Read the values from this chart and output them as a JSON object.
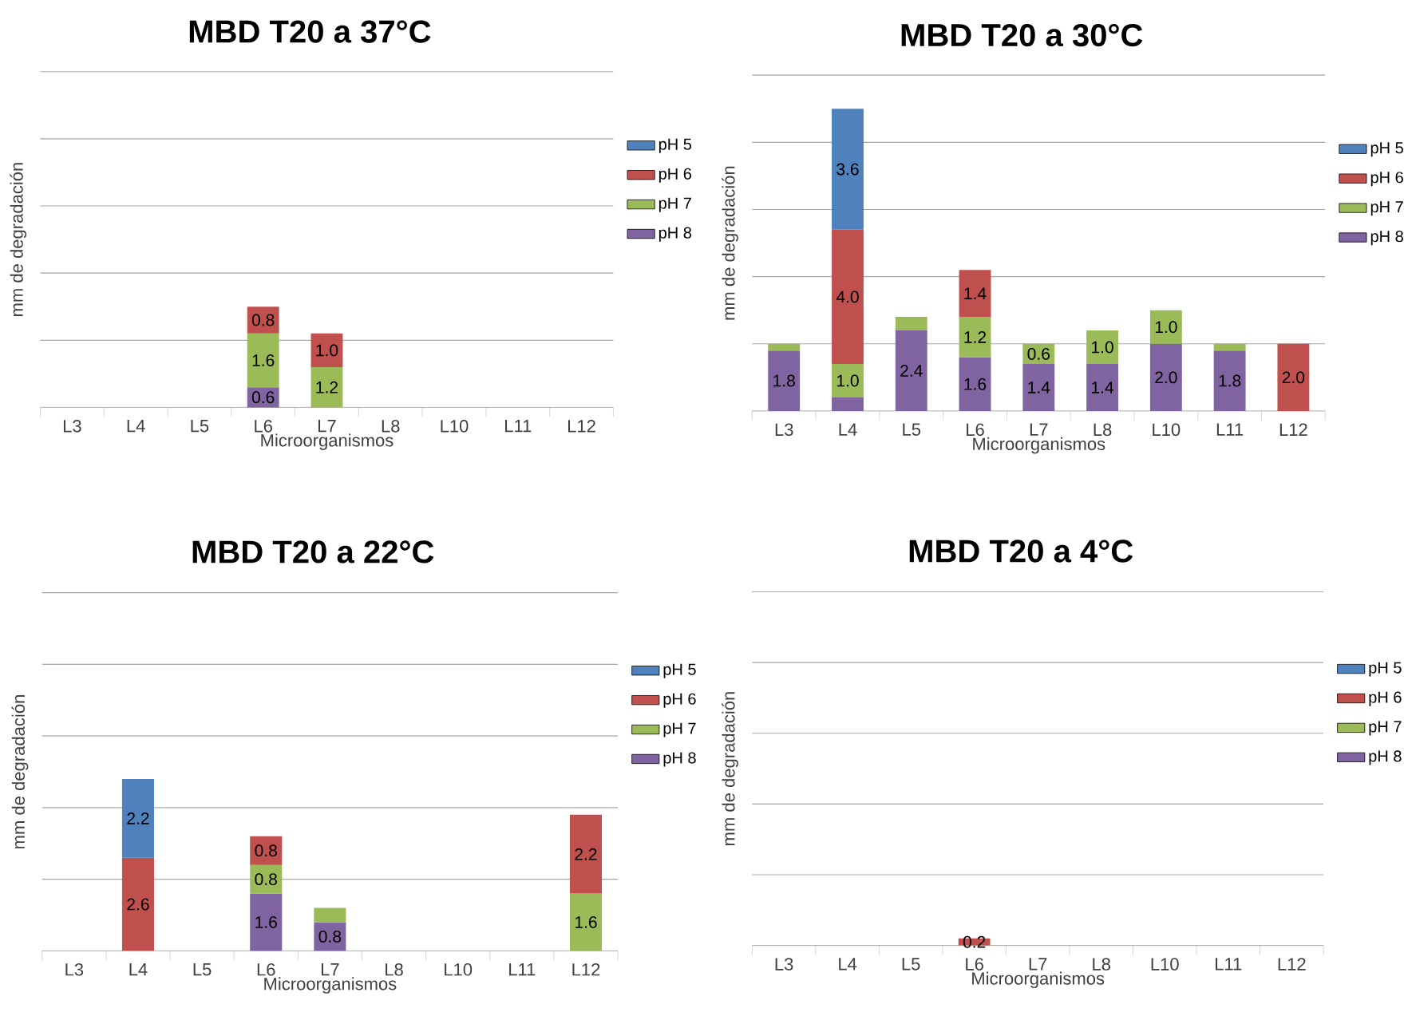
{
  "chart_data": [
    {
      "type": "bar",
      "stacked": true,
      "title": "MBD T20 a 37°C",
      "xlabel": "Microorganismos",
      "ylabel": "mm de degradación",
      "categories": [
        "L3",
        "L4",
        "L5",
        "L6",
        "L7",
        "L8",
        "L10",
        "L11",
        "L12"
      ],
      "ylim": [
        0,
        10
      ],
      "yticks": [
        {
          "value": 2,
          "label": null
        },
        {
          "value": 4,
          "label": null
        },
        {
          "value": 6,
          "label": null
        },
        {
          "value": 8,
          "label": null
        },
        {
          "value": 10,
          "label": null
        }
      ],
      "tick_labels": "x",
      "grid": "y",
      "legend": "right",
      "series": [
        {
          "name": "pH 8",
          "color": "#8064a2",
          "values": [
            null,
            null,
            null,
            0.6,
            null,
            null,
            null,
            null,
            null
          ],
          "value_labels": [
            null,
            null,
            null,
            "0.6",
            null,
            null,
            null,
            null,
            null
          ]
        },
        {
          "name": "pH 7",
          "color": "#9bbb59",
          "values": [
            null,
            null,
            null,
            1.6,
            1.2,
            null,
            null,
            null,
            null
          ],
          "value_labels": [
            null,
            null,
            null,
            "1.6",
            "1.2",
            null,
            null,
            null,
            null
          ]
        },
        {
          "name": "pH 6",
          "color": "#c0504d",
          "values": [
            null,
            null,
            null,
            0.8,
            1.0,
            null,
            null,
            null,
            null
          ],
          "value_labels": [
            null,
            null,
            null,
            "0.8",
            "1.0",
            null,
            null,
            null,
            null
          ]
        },
        {
          "name": "pH 5",
          "color": "#4f81bd",
          "values": [
            null,
            null,
            null,
            null,
            null,
            null,
            null,
            null,
            null
          ]
        }
      ]
    },
    {
      "type": "bar",
      "stacked": true,
      "title": "MBD T20 a 30°C",
      "xlabel": "Microorganismos",
      "ylabel": "mm de degradación",
      "categories": [
        "L3",
        "L4",
        "L5",
        "L6",
        "L7",
        "L8",
        "L10",
        "L11",
        "L12"
      ],
      "ylim": [
        0,
        10
      ],
      "yticks": [
        {
          "value": 2,
          "label": null
        },
        {
          "value": 4,
          "label": null
        },
        {
          "value": 6,
          "label": null
        },
        {
          "value": 8,
          "label": null
        },
        {
          "value": 10,
          "label": null
        }
      ],
      "tick_labels": "x",
      "grid": "y",
      "legend": "right",
      "series": [
        {
          "name": "pH 8",
          "color": "#8064a2",
          "values": [
            1.8,
            0.4,
            2.4,
            1.6,
            1.4,
            1.4,
            2.0,
            1.8,
            null
          ],
          "value_labels": [
            "1.8",
            null,
            "2.4",
            "1.6",
            "1.4",
            "1.4",
            "2.0",
            "1.8",
            null
          ]
        },
        {
          "name": "pH 7",
          "color": "#9bbb59",
          "values": [
            0.2,
            1.0,
            0.4,
            1.2,
            0.6,
            1.0,
            1.0,
            0.2,
            null
          ],
          "value_labels": [
            null,
            "1.0",
            null,
            "1.2",
            "0.6",
            "1.0",
            "1.0",
            null,
            null
          ]
        },
        {
          "name": "pH 6",
          "color": "#c0504d",
          "values": [
            null,
            4.0,
            null,
            1.4,
            null,
            null,
            null,
            null,
            2.0
          ],
          "value_labels": [
            null,
            "4.0",
            null,
            "1.4",
            null,
            null,
            null,
            null,
            "2.0"
          ]
        },
        {
          "name": "pH 5",
          "color": "#4f81bd",
          "values": [
            null,
            3.6,
            null,
            null,
            null,
            null,
            null,
            null,
            null
          ],
          "value_labels": [
            null,
            "3.6",
            null,
            null,
            null,
            null,
            null,
            null,
            null
          ]
        }
      ]
    },
    {
      "type": "bar",
      "stacked": true,
      "title": "MBD T20 a 22°C",
      "xlabel": "Microorganismos",
      "ylabel": "mm de degradación",
      "categories": [
        "L3",
        "L4",
        "L5",
        "L6",
        "L7",
        "L8",
        "L10",
        "L11",
        "L12"
      ],
      "ylim": [
        0,
        10
      ],
      "yticks": [
        {
          "value": 2,
          "label": null
        },
        {
          "value": 4,
          "label": null
        },
        {
          "value": 6,
          "label": null
        },
        {
          "value": 8,
          "label": null
        },
        {
          "value": 10,
          "label": null
        }
      ],
      "tick_labels": "x",
      "grid": "y",
      "legend": "right",
      "series": [
        {
          "name": "pH 8",
          "color": "#8064a2",
          "values": [
            null,
            null,
            null,
            1.6,
            0.8,
            null,
            null,
            null,
            null
          ],
          "value_labels": [
            null,
            null,
            null,
            "1.6",
            "0.8",
            null,
            null,
            null,
            null
          ]
        },
        {
          "name": "pH 7",
          "color": "#9bbb59",
          "values": [
            null,
            null,
            null,
            0.8,
            0.4,
            null,
            null,
            null,
            1.6
          ],
          "value_labels": [
            null,
            null,
            null,
            "0.8",
            null,
            null,
            null,
            null,
            "1.6"
          ]
        },
        {
          "name": "pH 6",
          "color": "#c0504d",
          "values": [
            null,
            2.6,
            null,
            0.8,
            null,
            null,
            null,
            null,
            2.2
          ],
          "value_labels": [
            null,
            "2.6",
            null,
            "0.8",
            null,
            null,
            null,
            null,
            "2.2"
          ]
        },
        {
          "name": "pH 5",
          "color": "#4f81bd",
          "values": [
            null,
            2.2,
            null,
            null,
            null,
            null,
            null,
            null,
            null
          ],
          "value_labels": [
            null,
            "2.2",
            null,
            null,
            null,
            null,
            null,
            null,
            null
          ]
        }
      ]
    },
    {
      "type": "bar",
      "stacked": true,
      "title": "MBD T20 a 4°C",
      "xlabel": "Microorganismos",
      "ylabel": "mm de degradación",
      "categories": [
        "L3",
        "L4",
        "L5",
        "L6",
        "L7",
        "L8",
        "L10",
        "L11",
        "L12"
      ],
      "ylim": [
        0,
        10
      ],
      "yticks": [
        {
          "value": 2,
          "label": null
        },
        {
          "value": 4,
          "label": null
        },
        {
          "value": 6,
          "label": null
        },
        {
          "value": 8,
          "label": null
        },
        {
          "value": 10,
          "label": null
        }
      ],
      "tick_labels": "x",
      "grid": "y",
      "legend": "right",
      "series": [
        {
          "name": "pH 8",
          "color": "#8064a2",
          "values": [
            null,
            null,
            null,
            null,
            null,
            null,
            null,
            null,
            null
          ]
        },
        {
          "name": "pH 7",
          "color": "#9bbb59",
          "values": [
            null,
            null,
            null,
            null,
            null,
            null,
            null,
            null,
            null
          ]
        },
        {
          "name": "pH 6",
          "color": "#c0504d",
          "values": [
            null,
            null,
            null,
            0.2,
            null,
            null,
            null,
            null,
            null
          ],
          "value_labels": [
            null,
            null,
            null,
            "0.2",
            null,
            null,
            null,
            null,
            null
          ]
        },
        {
          "name": "pH 5",
          "color": "#4f81bd",
          "values": [
            null,
            null,
            null,
            null,
            null,
            null,
            null,
            null,
            null
          ]
        }
      ]
    }
  ]
}
